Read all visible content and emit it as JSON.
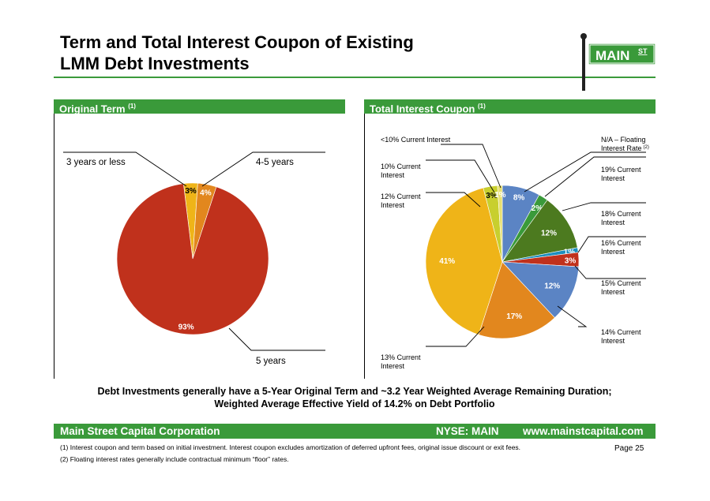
{
  "header": {
    "title_line1": "Term and Total Interest Coupon of Existing",
    "title_line2": "LMM Debt Investments",
    "logo_text": "MAIN",
    "logo_sup": "ST"
  },
  "sections": {
    "left_title": "Original Term",
    "left_ref": "(1)",
    "right_title": "Total Interest Coupon",
    "right_ref": "(1)"
  },
  "colors": {
    "green": "#3a9a3a",
    "red": "#c0311c",
    "gold": "#efb418",
    "orange": "#e2871e",
    "blue": "#5b84c4",
    "dark_green": "#4c7a1f",
    "lime": "#c8cf2e",
    "teal": "#1c8fbe"
  },
  "chart_data": [
    {
      "type": "pie",
      "title": "Original Term",
      "slices": [
        {
          "label": "3 years or less",
          "value": 3,
          "value_label": "3%",
          "color": "#efb418"
        },
        {
          "label": "4-5 years",
          "value": 4,
          "value_label": "4%",
          "color": "#e2871e"
        },
        {
          "label": "5 years",
          "value": 93,
          "value_label": "93%",
          "color": "#c0311c"
        }
      ]
    },
    {
      "type": "pie",
      "title": "Total Interest Coupon",
      "slices": [
        {
          "label": "N/A – Floating Interest Rate",
          "label_line1": "N/A – Floating",
          "label_line2": "Interest Rate",
          "label_ref": "(2)",
          "value": 8,
          "value_label": "8%",
          "color": "#5b84c4"
        },
        {
          "label": "19% Current Interest",
          "label_line1": "19% Current",
          "label_line2": "Interest",
          "value": 2,
          "value_label": "2%",
          "color": "#3a9a3a"
        },
        {
          "label": "18% Current Interest",
          "label_line1": "18% Current",
          "label_line2": "Interest",
          "value": 12,
          "value_label": "12%",
          "color": "#4c7a1f"
        },
        {
          "label": "16% Current Interest",
          "label_line1": "16% Current",
          "label_line2": "Interest",
          "value": 1,
          "value_label": "1%",
          "color": "#1c8fbe"
        },
        {
          "label": "15% Current Interest",
          "label_line1": "15% Current",
          "label_line2": "Interest",
          "value": 3,
          "value_label": "3%",
          "color": "#c0311c"
        },
        {
          "label": "14% Current Interest",
          "label_line1": "14% Current",
          "label_line2": "Interest",
          "value": 12,
          "value_label": "12%",
          "color": "#5b84c4"
        },
        {
          "label": "13% Current Interest",
          "label_line1": "13% Current",
          "label_line2": "Interest",
          "value": 17,
          "value_label": "17%",
          "color": "#e2871e"
        },
        {
          "label": "12% Current Interest",
          "label_line1": "12% Current",
          "label_line2": "Interest",
          "value": 41,
          "value_label": "41%",
          "color": "#efb418"
        },
        {
          "label": "10% Current Interest",
          "label_line1": "10% Current",
          "label_line2": "Interest",
          "value": 3,
          "value_label": "3%",
          "color": "#c8cf2e"
        },
        {
          "label": "<10% Current Interest",
          "label_line1": "<10% Current Interest",
          "label_line2": "",
          "value": 1,
          "value_label": "1%",
          "color": "#e8e070"
        }
      ]
    }
  ],
  "tagline": {
    "line1": "Debt Investments generally have a 5-Year Original Term and ~3.2 Year Weighted Average Remaining Duration;",
    "line2": "Weighted Average Effective Yield of 14.2% on Debt Portfolio"
  },
  "footer": {
    "company": "Main Street Capital Corporation",
    "ticker": "NYSE: MAIN",
    "website": "www.mainstcapital.com",
    "note1": "(1) Interest coupon and term based on initial investment.  Interest coupon excludes amortization of deferred upfront fees, original issue discount or exit fees.",
    "note2": "(2) Floating interest rates generally include contractual minimum “floor” rates.",
    "page": "Page 25"
  }
}
